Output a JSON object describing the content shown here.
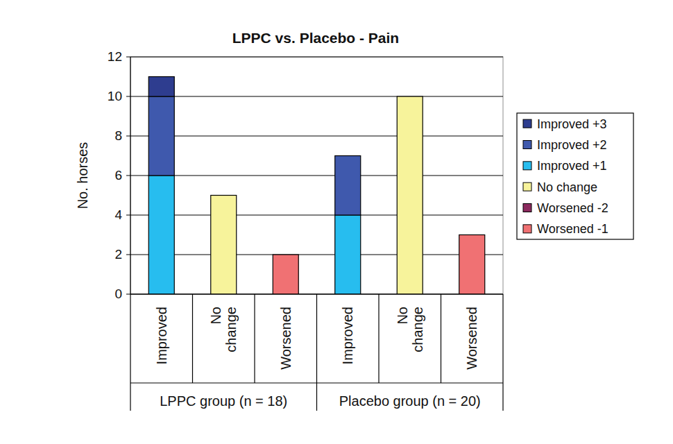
{
  "chart_data": {
    "type": "bar",
    "stacked": true,
    "title": "LPPC vs. Placebo - Pain",
    "y_label": "No. horses",
    "categories": [
      "Improved",
      "No change",
      "Worsened",
      "Improved",
      "No change",
      "Worsened"
    ],
    "x_groups": [
      "LPPC group (n = 18)",
      "Placebo group (n = 20)"
    ],
    "series": [
      {
        "name": "Worsened -1",
        "color": "#f07173",
        "values": [
          0,
          0,
          2,
          0,
          0,
          3
        ]
      },
      {
        "name": "Worsened -2",
        "color": "#8b2a5e",
        "values": [
          0,
          0,
          0,
          0,
          0,
          0
        ]
      },
      {
        "name": "No change",
        "color": "#f7f39b",
        "values": [
          0,
          5,
          0,
          0,
          10,
          0
        ]
      },
      {
        "name": "Improved +1",
        "color": "#27bdef",
        "values": [
          6,
          0,
          0,
          4,
          0,
          0
        ]
      },
      {
        "name": "Improved +2",
        "color": "#3f59ad",
        "values": [
          4,
          0,
          0,
          3,
          0,
          0
        ]
      },
      {
        "name": "Improved +3",
        "color": "#2e3d8f",
        "values": [
          1,
          0,
          0,
          0,
          0,
          0
        ]
      }
    ],
    "ylim": [
      0,
      12
    ],
    "yticks": [
      0,
      2,
      4,
      6,
      8,
      10,
      12
    ],
    "grid": true,
    "legend": "right"
  }
}
